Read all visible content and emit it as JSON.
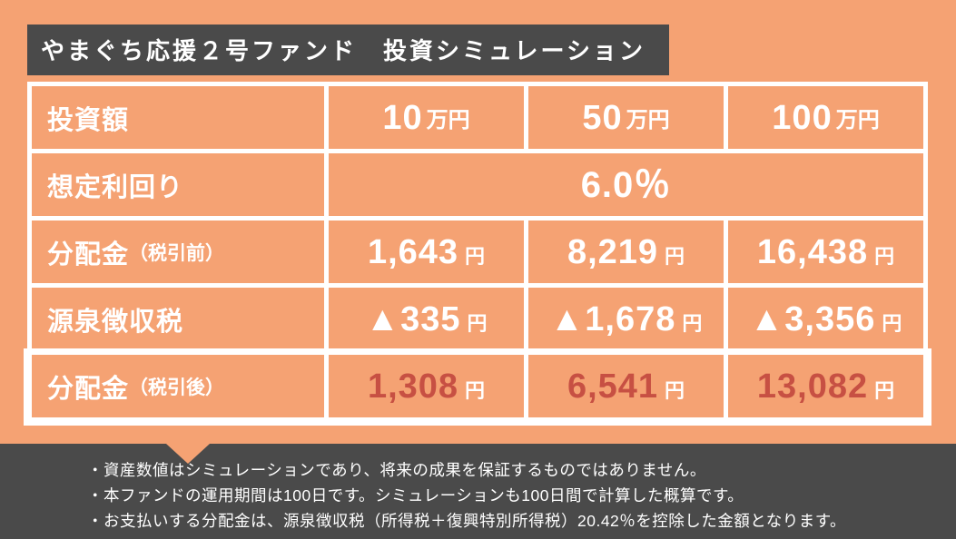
{
  "colors": {
    "background": "#F5A273",
    "panel_dark": "#4A4A4A",
    "table_line": "#FFFFFF",
    "text_white": "#FFFFFF",
    "highlight_red": "#C75043"
  },
  "title": "やまぐち応援２号ファンド　投資シミュレーション",
  "table": {
    "rows": [
      {
        "label": "投資額",
        "label_sub": "",
        "cells": [
          {
            "num": "10",
            "unit": "万円"
          },
          {
            "num": "50",
            "unit": "万円"
          },
          {
            "num": "100",
            "unit": "万円"
          }
        ]
      },
      {
        "label": "想定利回り",
        "label_sub": "",
        "merged": "6.0％"
      },
      {
        "label": "分配金",
        "label_sub": "（税引前）",
        "cells": [
          {
            "num": "1,643",
            "unit": "円"
          },
          {
            "num": "8,219",
            "unit": "円"
          },
          {
            "num": "16,438",
            "unit": "円"
          }
        ]
      },
      {
        "label": "源泉徴収税",
        "label_sub": "",
        "cells": [
          {
            "num": "▲335",
            "unit": "円"
          },
          {
            "num": "▲1,678",
            "unit": "円"
          },
          {
            "num": "▲3,356",
            "unit": "円"
          }
        ]
      },
      {
        "label": "分配金",
        "label_sub": "（税引後）",
        "cells": [
          {
            "num": "1,308",
            "unit": "円"
          },
          {
            "num": "6,541",
            "unit": "円"
          },
          {
            "num": "13,082",
            "unit": "円"
          }
        ]
      }
    ]
  },
  "notes": [
    "・資産数値はシミュレーションであり、将来の成果を保証するものではありません。",
    "・本ファンドの運用期間は100日です。シミュレーションも100日間で計算した概算です。",
    "・お支払いする分配金は、源泉徴収税（所得税＋復興特別所得税）20.42％を控除した金額となります。"
  ],
  "chart_data": {
    "type": "table",
    "title": "やまぐち応援２号ファンド　投資シミュレーション",
    "columns": [
      "投資額",
      "10万円",
      "50万円",
      "100万円"
    ],
    "rows": [
      [
        "想定利回り",
        "6.0％",
        "6.0％",
        "6.0％"
      ],
      [
        "分配金（税引前）",
        "1,643円",
        "8,219円",
        "16,438円"
      ],
      [
        "源泉徴収税",
        "▲335円",
        "▲1,678円",
        "▲3,356円"
      ],
      [
        "分配金（税引後）",
        "1,308円",
        "6,541円",
        "13,082円"
      ]
    ],
    "notes": "運用期間100日・源泉徴収税率20.42％で計算した概算"
  }
}
